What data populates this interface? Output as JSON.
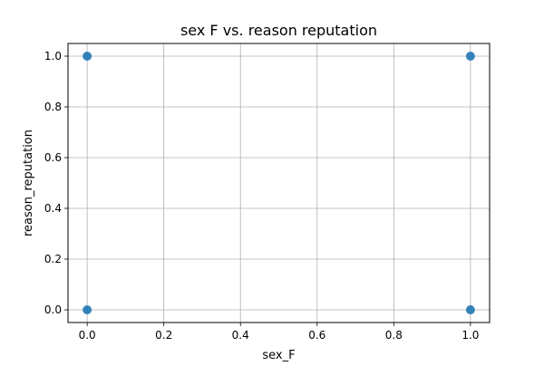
{
  "chart_data": {
    "type": "scatter",
    "title": "sex F vs. reason reputation",
    "xlabel": "sex_F",
    "ylabel": "reason_reputation",
    "xlim": [
      -0.05,
      1.05
    ],
    "ylim": [
      -0.05,
      1.05
    ],
    "xticks": [
      0.0,
      0.2,
      0.4,
      0.6,
      0.8,
      1.0
    ],
    "xtick_labels": [
      "0.0",
      "0.2",
      "0.4",
      "0.6",
      "0.8",
      "1.0"
    ],
    "yticks": [
      0.0,
      0.2,
      0.4,
      0.6,
      0.8,
      1.0
    ],
    "ytick_labels": [
      "0.0",
      "0.2",
      "0.4",
      "0.6",
      "0.8",
      "1.0"
    ],
    "grid": true,
    "marker_color": "#1f77b4",
    "points": [
      {
        "x": 0,
        "y": 1
      },
      {
        "x": 1,
        "y": 1
      },
      {
        "x": 0,
        "y": 0
      },
      {
        "x": 1,
        "y": 0
      }
    ]
  }
}
